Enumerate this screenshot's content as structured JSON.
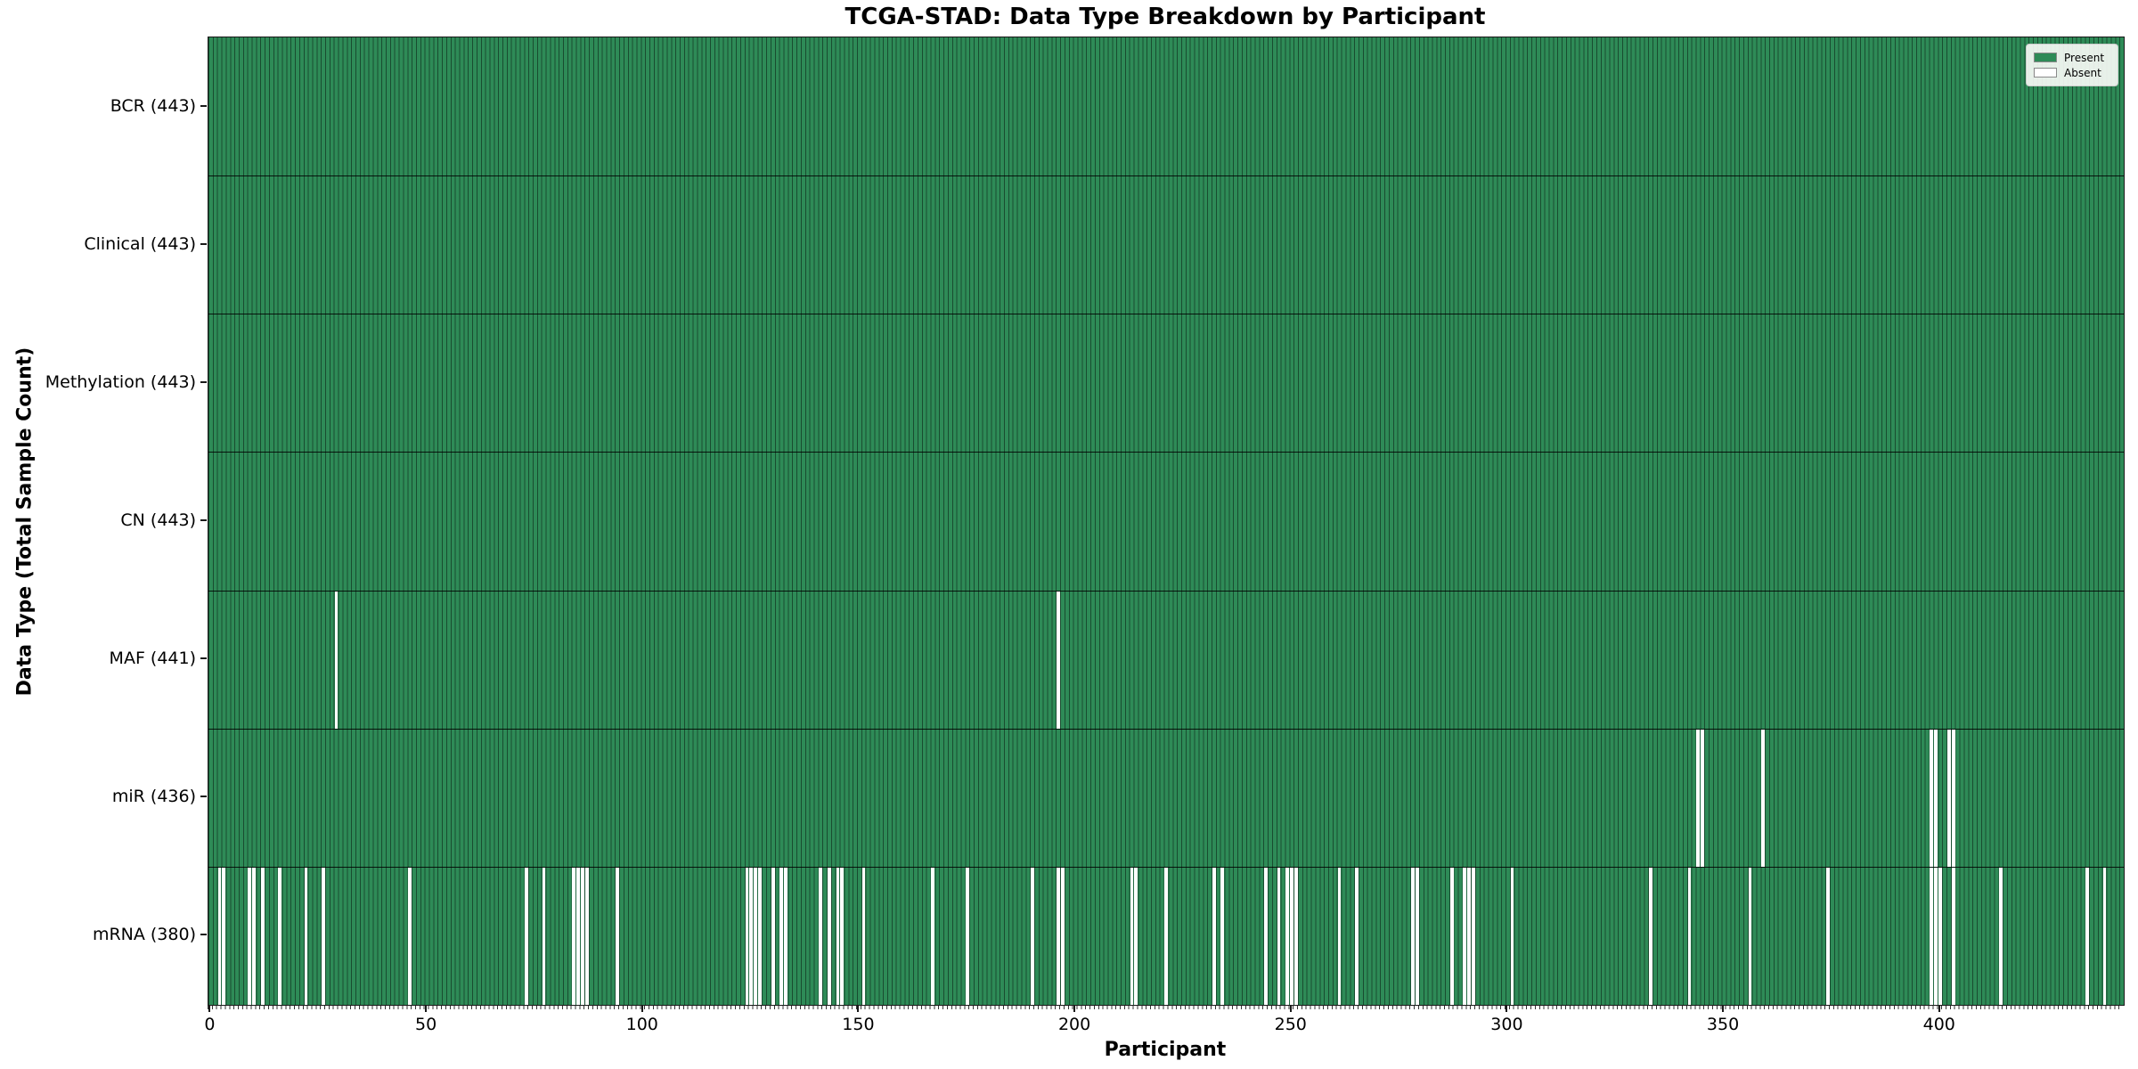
{
  "chart_data": {
    "type": "heatmap",
    "title": "TCGA-STAD: Data Type Breakdown by Participant",
    "xlabel": "Participant",
    "ylabel": "Data Type (Total Sample Count)",
    "x_ticks": [
      0,
      50,
      100,
      150,
      200,
      250,
      300,
      350,
      400
    ],
    "n_participants": 443,
    "x_range": [
      0,
      442
    ],
    "grid": false,
    "legend_position": "upper right",
    "colors": {
      "present": "#2e8b57",
      "absent": "#ffffff"
    },
    "legend": [
      {
        "label": "Present",
        "color": "#2e8b57"
      },
      {
        "label": "Absent",
        "color": "#ffffff"
      }
    ],
    "rows": [
      {
        "label": "BCR (443)",
        "name": "BCR",
        "total": 443,
        "absent": []
      },
      {
        "label": "Clinical (443)",
        "name": "Clinical",
        "total": 443,
        "absent": []
      },
      {
        "label": "Methylation (443)",
        "name": "Methylation",
        "total": 443,
        "absent": []
      },
      {
        "label": "CN (443)",
        "name": "CN",
        "total": 443,
        "absent": []
      },
      {
        "label": "MAF (441)",
        "name": "MAF",
        "total": 441,
        "absent": [
          29,
          196
        ]
      },
      {
        "label": "miR (436)",
        "name": "miR",
        "total": 436,
        "absent": [
          344,
          345,
          359,
          398,
          399,
          402,
          403
        ]
      },
      {
        "label": "mRNA (380)",
        "name": "mRNA",
        "total": 380,
        "absent": [
          2,
          3,
          9,
          10,
          12,
          16,
          22,
          26,
          46,
          73,
          77,
          84,
          85,
          86,
          87,
          94,
          124,
          125,
          126,
          127,
          130,
          132,
          133,
          141,
          143,
          145,
          146,
          151,
          167,
          175,
          190,
          196,
          197,
          213,
          214,
          221,
          232,
          234,
          244,
          247,
          249,
          250,
          251,
          261,
          265,
          278,
          279,
          287,
          290,
          291,
          292,
          301,
          333,
          342,
          356,
          374,
          398,
          399,
          400,
          403,
          414,
          434,
          438
        ]
      }
    ]
  }
}
